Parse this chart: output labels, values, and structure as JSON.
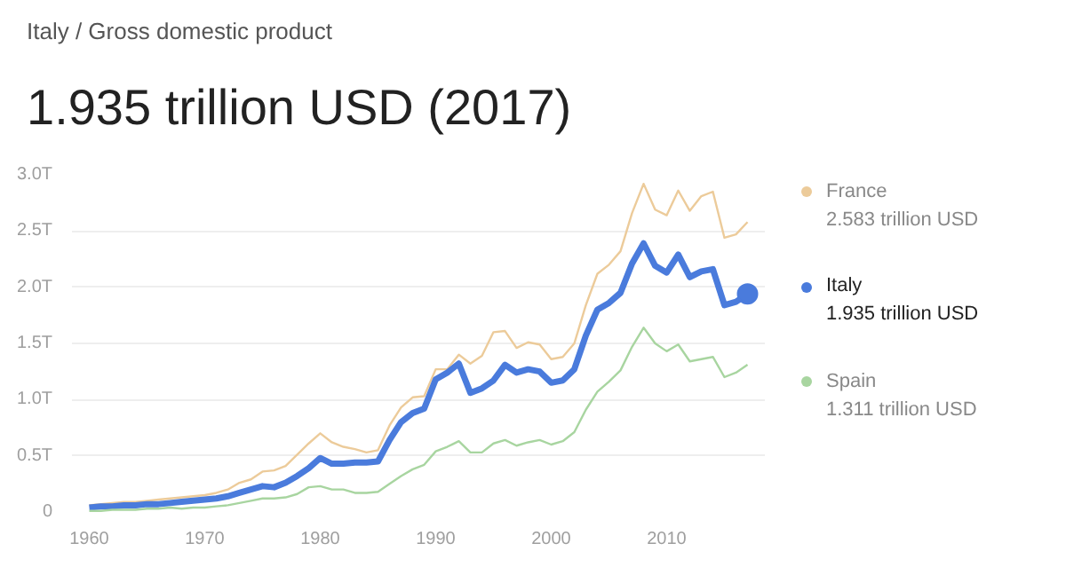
{
  "chart_data": {
    "type": "line",
    "title": "Italy / Gross domestic product",
    "subtitle": "1.935 trillion USD (2017)",
    "x": [
      1960,
      1961,
      1962,
      1963,
      1964,
      1965,
      1966,
      1967,
      1968,
      1969,
      1970,
      1971,
      1972,
      1973,
      1974,
      1975,
      1976,
      1977,
      1978,
      1979,
      1980,
      1981,
      1982,
      1983,
      1984,
      1985,
      1986,
      1987,
      1988,
      1989,
      1990,
      1991,
      1992,
      1993,
      1994,
      1995,
      1996,
      1997,
      1998,
      1999,
      2000,
      2001,
      2002,
      2003,
      2004,
      2005,
      2006,
      2007,
      2008,
      2009,
      2010,
      2011,
      2012,
      2013,
      2014,
      2015,
      2016,
      2017
    ],
    "series": [
      {
        "name": "France",
        "color": "#eccb9a",
        "values": [
          0.06,
          0.07,
          0.08,
          0.09,
          0.09,
          0.1,
          0.11,
          0.12,
          0.13,
          0.14,
          0.15,
          0.17,
          0.2,
          0.26,
          0.29,
          0.36,
          0.37,
          0.41,
          0.51,
          0.61,
          0.7,
          0.62,
          0.58,
          0.56,
          0.53,
          0.55,
          0.77,
          0.93,
          1.02,
          1.03,
          1.27,
          1.27,
          1.4,
          1.32,
          1.39,
          1.6,
          1.61,
          1.46,
          1.51,
          1.49,
          1.36,
          1.38,
          1.5,
          1.84,
          2.12,
          2.2,
          2.32,
          2.66,
          2.92,
          2.69,
          2.64,
          2.86,
          2.68,
          2.81,
          2.85,
          2.44,
          2.47,
          2.58
        ]
      },
      {
        "name": "Italy",
        "color": "#4a7bdc",
        "values": [
          0.04,
          0.05,
          0.05,
          0.06,
          0.06,
          0.07,
          0.07,
          0.08,
          0.09,
          0.1,
          0.11,
          0.12,
          0.14,
          0.17,
          0.2,
          0.23,
          0.22,
          0.26,
          0.32,
          0.39,
          0.48,
          0.43,
          0.43,
          0.44,
          0.44,
          0.45,
          0.64,
          0.8,
          0.88,
          0.92,
          1.18,
          1.24,
          1.32,
          1.06,
          1.1,
          1.17,
          1.31,
          1.24,
          1.27,
          1.25,
          1.15,
          1.17,
          1.27,
          1.57,
          1.8,
          1.86,
          1.95,
          2.21,
          2.39,
          2.19,
          2.13,
          2.29,
          2.09,
          2.14,
          2.16,
          1.84,
          1.87,
          1.94
        ]
      },
      {
        "name": "Spain",
        "color": "#a8d5a0",
        "values": [
          0.01,
          0.01,
          0.02,
          0.02,
          0.02,
          0.03,
          0.03,
          0.04,
          0.03,
          0.04,
          0.04,
          0.05,
          0.06,
          0.08,
          0.1,
          0.12,
          0.12,
          0.13,
          0.16,
          0.22,
          0.23,
          0.2,
          0.2,
          0.17,
          0.17,
          0.18,
          0.25,
          0.32,
          0.38,
          0.42,
          0.54,
          0.58,
          0.63,
          0.53,
          0.53,
          0.61,
          0.64,
          0.59,
          0.62,
          0.64,
          0.6,
          0.63,
          0.71,
          0.91,
          1.07,
          1.16,
          1.26,
          1.47,
          1.64,
          1.5,
          1.43,
          1.49,
          1.34,
          1.36,
          1.38,
          1.2,
          1.24,
          1.31
        ]
      },
      {
        "type": "scatter",
        "color": "#4a7bdc",
        "x": [
          2017
        ],
        "values": [
          1.94
        ]
      }
    ],
    "annotations": [
      "2.583 trillion USD",
      "1.935 trillion USD",
      "1.311 trillion USD"
    ],
    "xlim": [
      1958.5,
      2018.5
    ],
    "ylim": [
      0,
      3.0
    ],
    "xticks": [
      1960,
      1970,
      1980,
      1990,
      2000,
      2010
    ],
    "yticks": [
      0,
      {
        "value": 0.5,
        "label": "0.5T"
      },
      {
        "value": 1.0,
        "label": "1.0T"
      },
      {
        "value": 1.5,
        "label": "1.5T"
      },
      {
        "value": 2.0,
        "label": "2.0T"
      },
      {
        "value": 2.5,
        "label": "2.5T"
      },
      {
        "value": 3.0,
        "label": "3.0T"
      }
    ],
    "grid": "y",
    "legend": "right"
  }
}
